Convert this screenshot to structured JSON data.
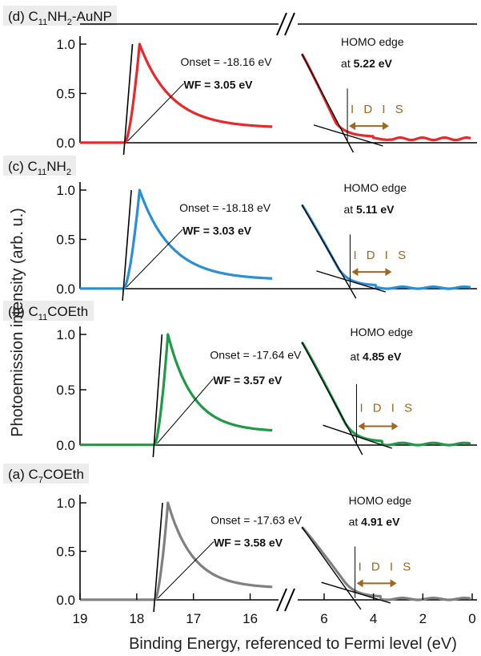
{
  "chart_data": {
    "type": "line",
    "ylabel": "Photoemission intensity (arb. u.)",
    "xlabel": "Binding Energy, referenced to Fermi level (eV)",
    "x_ticks_left": [
      "19",
      "18",
      "17",
      "16"
    ],
    "x_ticks_right": [
      "6",
      "4",
      "2",
      "0"
    ],
    "x_range_left": [
      19,
      15.5
    ],
    "x_range_right": [
      7.2,
      0
    ],
    "y_ticks": [
      "0.0",
      "0.5",
      "1.0"
    ],
    "ylim": [
      0,
      1.1
    ],
    "idis_label": "I D I S",
    "idis_color": "#a0661e",
    "panels": [
      {
        "id": "d",
        "title_main": "(d) C",
        "title_sub": "11",
        "title_rest": "NH",
        "title_sub2": "2",
        "title_rest2": "-AuNP",
        "color": "#e8282b",
        "onset": -18.16,
        "onset_label": "Onset = -18.16 eV",
        "wf_label": "WF = 3.05 eV",
        "homo_label": "HOMO edge",
        "homo_value_prefix": "at ",
        "homo_value": "5.22 eV",
        "homo": 5.22,
        "peak_x": 17.95,
        "decay_end": 0.15,
        "right_start_y": 0.9,
        "tail_level": 0.04
      },
      {
        "id": "c",
        "title_main": "(c) C",
        "title_sub": "11",
        "title_rest": "NH",
        "title_sub2": "2",
        "title_rest2": "",
        "color": "#2a8fd4",
        "onset": -18.18,
        "onset_label": "Onset = -18.18 eV",
        "wf_label": "WF = 3.03 eV",
        "homo_label": "HOMO edge",
        "homo_value_prefix": "at ",
        "homo_value": "5.11 eV",
        "homo": 5.11,
        "peak_x": 17.95,
        "decay_end": 0.09,
        "right_start_y": 0.85,
        "tail_level": 0.01
      },
      {
        "id": "b",
        "title_main": "(b) C",
        "title_sub": "11",
        "title_rest": "COEth",
        "title_sub2": "",
        "title_rest2": "",
        "color": "#1f9a46",
        "onset": -17.64,
        "onset_label": "Onset = -17.64 eV",
        "wf_label": "WF = 3.57 eV",
        "homo_label": "HOMO edge",
        "homo_value_prefix": "at ",
        "homo_value": "4.85 eV",
        "homo": 4.85,
        "peak_x": 17.45,
        "decay_end": 0.12,
        "right_start_y": 0.93,
        "tail_level": 0.01
      },
      {
        "id": "a",
        "title_main": "(a) C",
        "title_sub": "7",
        "title_rest": "COEth",
        "title_sub2": "",
        "title_rest2": "",
        "color": "#808080",
        "onset": -17.63,
        "onset_label": "Onset = -17.63 eV",
        "wf_label": "WF = 3.58 eV",
        "homo_label": "HOMO edge",
        "homo_value_prefix": "at ",
        "homo_value": "4.91 eV",
        "homo": 4.91,
        "peak_x": 17.45,
        "decay_end": 0.12,
        "right_start_y": 0.75,
        "tail_level": 0.01
      }
    ]
  }
}
